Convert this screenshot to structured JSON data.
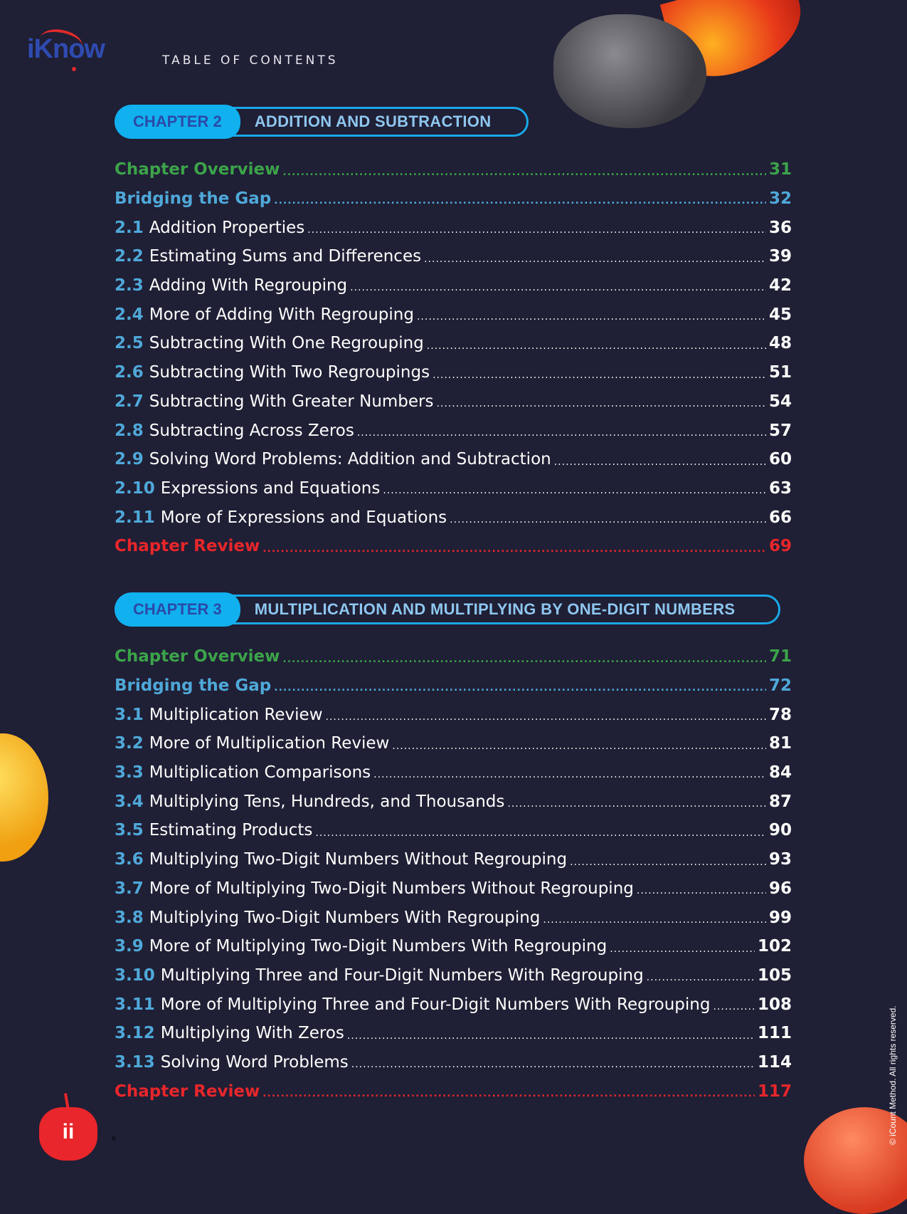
{
  "header": {
    "logo_text": "iKnow",
    "logo_tagline": "",
    "title": "TABLE OF CONTENTS"
  },
  "colors": {
    "background": "#1f1f35",
    "overview": "#3ca34a",
    "bridging": "#4fa8d8",
    "review": "#e8262b",
    "pill": "#11b0ef"
  },
  "chapters": [
    {
      "label": "CHAPTER 2",
      "title": "ADDITION AND SUBTRACTION",
      "entries": [
        {
          "num": "",
          "title": "Chapter Overview",
          "page": "31",
          "style": "green"
        },
        {
          "num": "",
          "title": "Bridging the Gap",
          "page": "32",
          "style": "blue"
        },
        {
          "num": "2.1",
          "title": "Addition Properties",
          "page": "36",
          "style": ""
        },
        {
          "num": "2.2",
          "title": "Estimating Sums and Differences",
          "page": "39",
          "style": ""
        },
        {
          "num": "2.3",
          "title": "Adding With Regrouping",
          "page": "42",
          "style": ""
        },
        {
          "num": "2.4",
          "title": "More of Adding With Regrouping",
          "page": "45",
          "style": ""
        },
        {
          "num": "2.5",
          "title": "Subtracting With One Regrouping",
          "page": "48",
          "style": ""
        },
        {
          "num": "2.6",
          "title": "Subtracting With Two Regroupings",
          "page": "51",
          "style": ""
        },
        {
          "num": "2.7",
          "title": "Subtracting With Greater Numbers",
          "page": "54",
          "style": ""
        },
        {
          "num": "2.8",
          "title": "Subtracting Across Zeros",
          "page": "57",
          "style": ""
        },
        {
          "num": "2.9",
          "title": "Solving Word Problems: Addition and Subtraction",
          "page": "60",
          "style": ""
        },
        {
          "num": "2.10",
          "title": "Expressions and Equations",
          "page": "63",
          "style": ""
        },
        {
          "num": "2.11",
          "title": "More of Expressions and Equations",
          "page": "66",
          "style": ""
        },
        {
          "num": "",
          "title": "Chapter Review",
          "page": "69",
          "style": "red"
        }
      ]
    },
    {
      "label": "CHAPTER 3",
      "title": "MULTIPLICATION AND MULTIPLYING BY ONE-DIGIT NUMBERS",
      "entries": [
        {
          "num": "",
          "title": "Chapter Overview",
          "page": "71",
          "style": "green"
        },
        {
          "num": "",
          "title": "Bridging the Gap",
          "page": "72",
          "style": "blue"
        },
        {
          "num": "3.1",
          "title": "Multiplication Review",
          "page": "78",
          "style": ""
        },
        {
          "num": "3.2",
          "title": "More of Multiplication Review",
          "page": "81",
          "style": ""
        },
        {
          "num": "3.3",
          "title": "Multiplication Comparisons",
          "page": "84",
          "style": ""
        },
        {
          "num": "3.4",
          "title": "Multiplying Tens, Hundreds, and Thousands",
          "page": "87",
          "style": ""
        },
        {
          "num": "3.5",
          "title": "Estimating Products",
          "page": "90",
          "style": ""
        },
        {
          "num": "3.6",
          "title": "Multiplying Two-Digit Numbers Without Regrouping",
          "page": "93",
          "style": ""
        },
        {
          "num": "3.7",
          "title": "More of Multiplying Two-Digit Numbers Without Regrouping",
          "page": "96",
          "style": ""
        },
        {
          "num": "3.8",
          "title": "Multiplying Two-Digit Numbers With Regrouping",
          "page": "99",
          "style": ""
        },
        {
          "num": "3.9",
          "title": "More of Multiplying Two-Digit Numbers With Regrouping",
          "page": "102",
          "style": ""
        },
        {
          "num": "3.10",
          "title": "Multiplying Three and Four-Digit Numbers With Regrouping",
          "page": "105",
          "style": ""
        },
        {
          "num": "3.11",
          "title": "More of Multiplying Three and Four-Digit Numbers With Regrouping",
          "page": "108",
          "style": ""
        },
        {
          "num": "3.12",
          "title": "Multiplying With Zeros",
          "page": "111",
          "style": ""
        },
        {
          "num": "3.13",
          "title": "Solving Word Problems",
          "page": "114",
          "style": ""
        },
        {
          "num": "",
          "title": "Chapter Review",
          "page": "117",
          "style": "red"
        }
      ]
    }
  ],
  "footer": {
    "apple_logo_text": "ii",
    "copyright": "© iCount Method. All rights reserved."
  }
}
